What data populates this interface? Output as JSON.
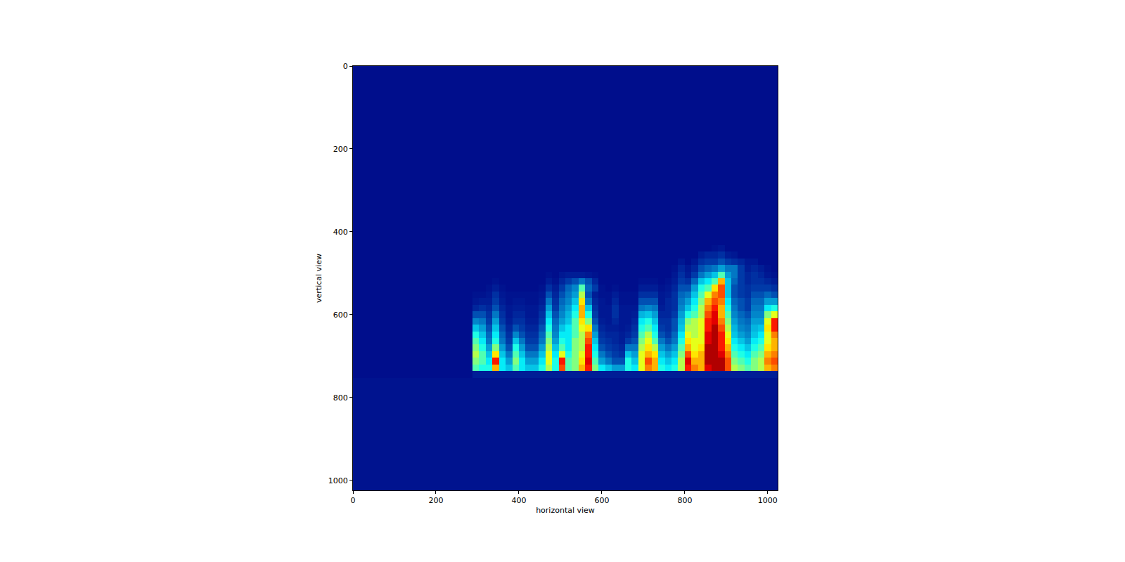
{
  "chart_data": {
    "type": "heatmap",
    "x_label": "horizontal view",
    "y_label": "vertical view",
    "xlim": [
      0,
      1024
    ],
    "ylim": [
      1024,
      0
    ],
    "xticks": [
      0,
      200,
      400,
      600,
      800,
      1000
    ],
    "yticks": [
      0,
      200,
      400,
      600,
      800,
      1000
    ],
    "zlim": [
      0,
      100
    ],
    "x_edges": [
      0,
      288,
      304,
      320,
      336,
      352,
      368,
      384,
      400,
      416,
      432,
      448,
      464,
      480,
      496,
      512,
      528,
      544,
      560,
      576,
      592,
      608,
      624,
      640,
      656,
      672,
      688,
      704,
      720,
      736,
      752,
      768,
      784,
      800,
      816,
      832,
      848,
      864,
      880,
      896,
      912,
      928,
      944,
      960,
      976,
      992,
      1008,
      1024
    ],
    "y_edges": [
      0,
      432,
      448,
      464,
      480,
      496,
      512,
      528,
      544,
      560,
      576,
      592,
      608,
      624,
      640,
      656,
      672,
      688,
      704,
      720,
      736,
      752,
      1024
    ],
    "z": [
      [
        3,
        3,
        3,
        3,
        3,
        3,
        3,
        3,
        3,
        3,
        3,
        3,
        3,
        3,
        3,
        3,
        3,
        3,
        3,
        3,
        3,
        3,
        3,
        3,
        3,
        3,
        3,
        3,
        3,
        3,
        3,
        3,
        3,
        3,
        3,
        3,
        3,
        3,
        3,
        3,
        3,
        3,
        3,
        3,
        3,
        3,
        3
      ],
      [
        3,
        3,
        3,
        3,
        3,
        3,
        3,
        3,
        3,
        3,
        3,
        3,
        3,
        3,
        3,
        3,
        3,
        3,
        3,
        3,
        3,
        3,
        3,
        3,
        3,
        3,
        3,
        3,
        3,
        3,
        3,
        3,
        3,
        3,
        3,
        3,
        3,
        4,
        5,
        3,
        3,
        3,
        3,
        3,
        3,
        3,
        3
      ],
      [
        3,
        3,
        3,
        3,
        3,
        3,
        3,
        3,
        3,
        3,
        3,
        3,
        3,
        3,
        3,
        3,
        3,
        3,
        3,
        3,
        3,
        3,
        3,
        3,
        3,
        3,
        3,
        3,
        3,
        3,
        3,
        3,
        3,
        3,
        3,
        6,
        8,
        8,
        10,
        6,
        5,
        3,
        3,
        3,
        3,
        3,
        3
      ],
      [
        3,
        3,
        3,
        3,
        3,
        3,
        3,
        3,
        3,
        3,
        3,
        3,
        3,
        3,
        3,
        3,
        3,
        3,
        3,
        3,
        3,
        3,
        3,
        3,
        3,
        3,
        3,
        3,
        3,
        3,
        3,
        3,
        5,
        3,
        5,
        10,
        12,
        12,
        15,
        12,
        10,
        8,
        5,
        5,
        3,
        3,
        3
      ],
      [
        3,
        3,
        3,
        3,
        3,
        3,
        3,
        3,
        3,
        3,
        3,
        3,
        3,
        3,
        3,
        3,
        3,
        3,
        3,
        3,
        3,
        3,
        3,
        3,
        3,
        3,
        3,
        3,
        3,
        3,
        3,
        4,
        8,
        5,
        8,
        15,
        18,
        20,
        25,
        20,
        20,
        12,
        6,
        8,
        6,
        4,
        3
      ],
      [
        3,
        3,
        3,
        3,
        3,
        3,
        3,
        3,
        3,
        3,
        3,
        3,
        4,
        3,
        5,
        6,
        6,
        6,
        5,
        4,
        3,
        3,
        3,
        3,
        3,
        3,
        3,
        3,
        3,
        3,
        3,
        5,
        10,
        6,
        12,
        20,
        25,
        30,
        45,
        25,
        20,
        12,
        8,
        10,
        8,
        5,
        4
      ],
      [
        3,
        3,
        3,
        3,
        4,
        3,
        3,
        3,
        3,
        3,
        3,
        3,
        6,
        4,
        8,
        12,
        15,
        20,
        15,
        8,
        3,
        3,
        3,
        3,
        3,
        3,
        4,
        4,
        4,
        3,
        4,
        6,
        12,
        10,
        18,
        30,
        35,
        45,
        70,
        30,
        18,
        12,
        8,
        10,
        10,
        8,
        6
      ],
      [
        3,
        3,
        3,
        4,
        6,
        4,
        3,
        3,
        3,
        3,
        3,
        4,
        10,
        6,
        12,
        18,
        22,
        45,
        18,
        12,
        4,
        3,
        4,
        3,
        3,
        3,
        6,
        6,
        6,
        4,
        5,
        8,
        15,
        15,
        25,
        40,
        45,
        65,
        80,
        30,
        15,
        12,
        10,
        12,
        12,
        12,
        10
      ],
      [
        3,
        4,
        4,
        5,
        10,
        5,
        4,
        4,
        4,
        4,
        4,
        5,
        15,
        8,
        15,
        20,
        25,
        55,
        15,
        6,
        4,
        4,
        6,
        4,
        4,
        4,
        10,
        10,
        10,
        5,
        6,
        10,
        18,
        20,
        30,
        45,
        60,
        75,
        80,
        30,
        15,
        12,
        10,
        15,
        15,
        18,
        15
      ],
      [
        3,
        5,
        6,
        6,
        12,
        6,
        4,
        5,
        5,
        4,
        4,
        6,
        20,
        10,
        18,
        22,
        30,
        65,
        20,
        8,
        5,
        4,
        8,
        4,
        4,
        4,
        15,
        15,
        15,
        5,
        8,
        10,
        20,
        25,
        35,
        50,
        70,
        80,
        75,
        35,
        18,
        15,
        12,
        18,
        18,
        25,
        25
      ],
      [
        3,
        8,
        10,
        8,
        15,
        8,
        5,
        6,
        6,
        5,
        5,
        8,
        25,
        12,
        20,
        25,
        35,
        70,
        30,
        10,
        5,
        5,
        10,
        5,
        5,
        5,
        20,
        22,
        20,
        6,
        8,
        10,
        22,
        30,
        40,
        55,
        75,
        85,
        70,
        40,
        20,
        15,
        12,
        20,
        20,
        35,
        40
      ],
      [
        3,
        15,
        15,
        10,
        20,
        10,
        5,
        8,
        8,
        5,
        5,
        10,
        30,
        15,
        22,
        28,
        40,
        70,
        40,
        12,
        5,
        5,
        10,
        5,
        5,
        6,
        28,
        30,
        25,
        8,
        8,
        12,
        25,
        40,
        45,
        55,
        80,
        90,
        70,
        45,
        22,
        18,
        15,
        22,
        22,
        50,
        60
      ],
      [
        3,
        22,
        20,
        12,
        25,
        12,
        6,
        10,
        10,
        6,
        6,
        12,
        35,
        18,
        25,
        30,
        45,
        65,
        50,
        15,
        6,
        5,
        8,
        5,
        5,
        8,
        35,
        40,
        30,
        10,
        10,
        15,
        28,
        50,
        55,
        60,
        85,
        90,
        75,
        50,
        25,
        20,
        18,
        25,
        25,
        60,
        85
      ],
      [
        3,
        30,
        25,
        15,
        30,
        15,
        8,
        15,
        12,
        8,
        8,
        15,
        40,
        20,
        30,
        35,
        45,
        60,
        65,
        20,
        8,
        6,
        6,
        5,
        6,
        10,
        40,
        45,
        35,
        12,
        10,
        15,
        30,
        55,
        55,
        60,
        85,
        95,
        80,
        55,
        28,
        22,
        20,
        28,
        30,
        65,
        85
      ],
      [
        3,
        40,
        30,
        18,
        35,
        18,
        10,
        22,
        15,
        10,
        10,
        18,
        45,
        22,
        35,
        35,
        45,
        55,
        75,
        25,
        10,
        8,
        8,
        6,
        8,
        12,
        45,
        55,
        40,
        15,
        12,
        18,
        35,
        60,
        55,
        60,
        90,
        95,
        85,
        60,
        30,
        25,
        22,
        30,
        35,
        60,
        75
      ],
      [
        3,
        45,
        35,
        20,
        40,
        20,
        12,
        30,
        20,
        12,
        12,
        20,
        50,
        25,
        40,
        35,
        50,
        55,
        80,
        30,
        12,
        10,
        8,
        6,
        12,
        15,
        50,
        60,
        45,
        20,
        15,
        20,
        40,
        65,
        60,
        60,
        90,
        95,
        85,
        65,
        35,
        30,
        25,
        35,
        40,
        60,
        70
      ],
      [
        3,
        50,
        40,
        25,
        50,
        25,
        15,
        40,
        25,
        15,
        15,
        25,
        55,
        30,
        45,
        35,
        50,
        55,
        85,
        35,
        15,
        12,
        10,
        8,
        20,
        20,
        55,
        65,
        55,
        25,
        20,
        25,
        45,
        70,
        60,
        65,
        95,
        95,
        85,
        70,
        40,
        35,
        30,
        40,
        45,
        65,
        70
      ],
      [
        3,
        55,
        45,
        30,
        65,
        30,
        20,
        45,
        30,
        20,
        20,
        30,
        60,
        35,
        60,
        40,
        50,
        60,
        85,
        40,
        20,
        15,
        12,
        10,
        30,
        25,
        60,
        70,
        65,
        30,
        25,
        30,
        50,
        80,
        65,
        70,
        95,
        95,
        90,
        75,
        45,
        40,
        35,
        45,
        50,
        70,
        75
      ],
      [
        3,
        50,
        45,
        35,
        85,
        35,
        25,
        50,
        35,
        25,
        25,
        35,
        60,
        40,
        85,
        45,
        50,
        65,
        90,
        45,
        25,
        20,
        15,
        15,
        40,
        30,
        60,
        80,
        70,
        35,
        30,
        35,
        55,
        90,
        70,
        70,
        95,
        95,
        95,
        80,
        50,
        45,
        40,
        50,
        55,
        75,
        80
      ],
      [
        3,
        45,
        40,
        40,
        70,
        35,
        30,
        45,
        35,
        30,
        30,
        40,
        55,
        40,
        80,
        45,
        50,
        70,
        85,
        50,
        35,
        30,
        25,
        25,
        40,
        35,
        60,
        75,
        70,
        40,
        35,
        40,
        55,
        85,
        75,
        70,
        90,
        95,
        95,
        80,
        55,
        50,
        45,
        50,
        55,
        70,
        75
      ],
      [
        3,
        6,
        6,
        6,
        6,
        6,
        6,
        6,
        6,
        6,
        6,
        6,
        6,
        6,
        6,
        6,
        6,
        6,
        6,
        6,
        6,
        6,
        6,
        6,
        6,
        6,
        6,
        6,
        6,
        6,
        6,
        6,
        6,
        6,
        6,
        6,
        6,
        6,
        6,
        6,
        6,
        6,
        6,
        6,
        6,
        6,
        6
      ],
      [
        4,
        4,
        4,
        4,
        4,
        4,
        4,
        4,
        4,
        4,
        4,
        4,
        4,
        4,
        4,
        4,
        4,
        4,
        4,
        4,
        4,
        4,
        4,
        4,
        4,
        4,
        4,
        4,
        4,
        4,
        4,
        4,
        4,
        4,
        4,
        4,
        4,
        4,
        4,
        4,
        4,
        4,
        4,
        4,
        4,
        4,
        4
      ]
    ]
  }
}
